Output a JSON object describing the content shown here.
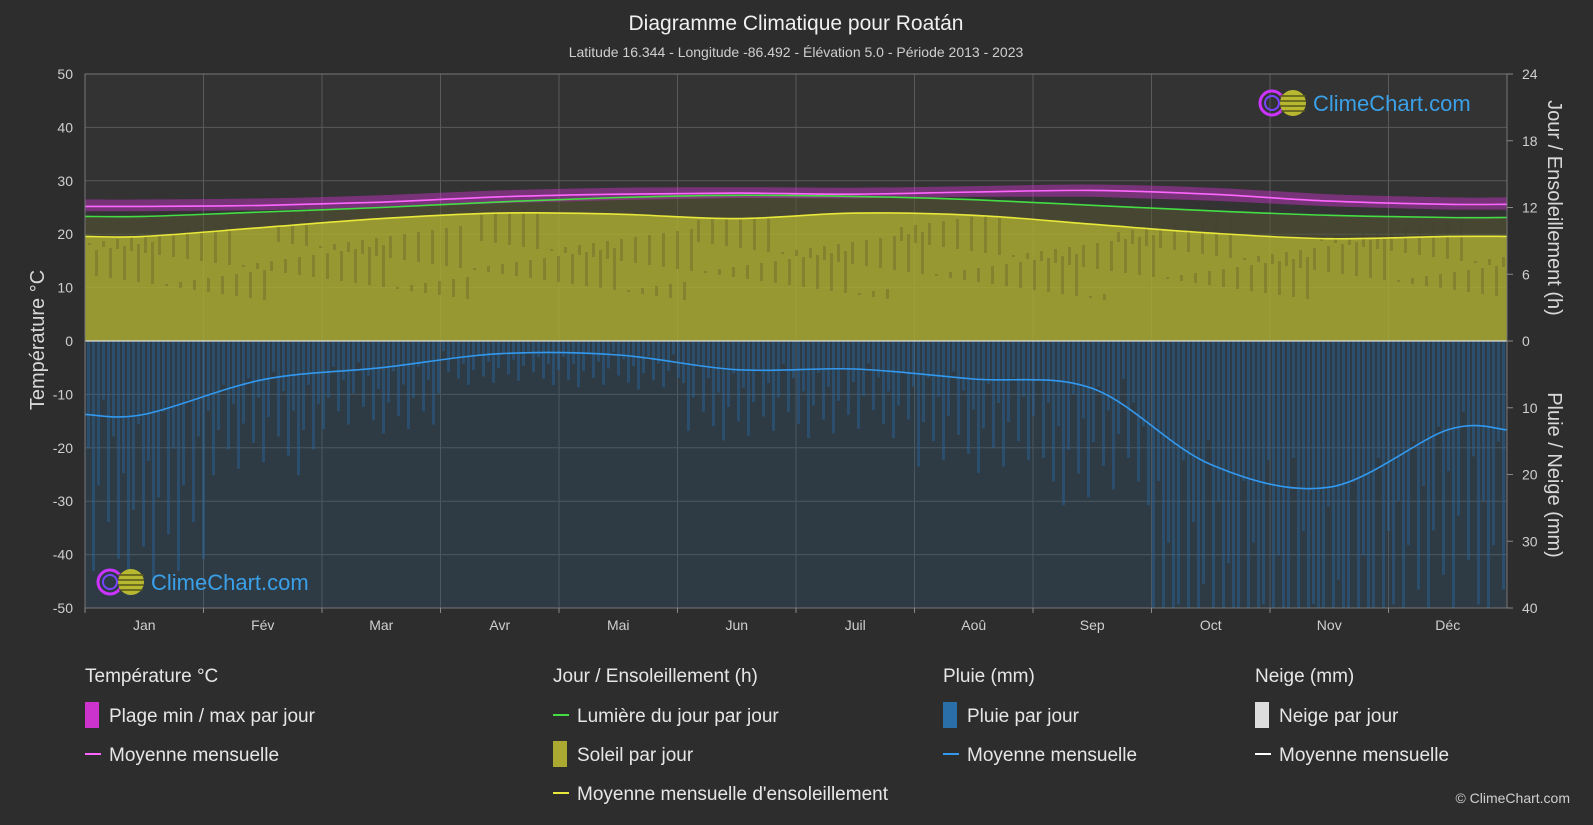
{
  "title": "Diagramme Climatique pour Roatán",
  "subtitle": "Latitude 16.344 - Longitude -86.492 - Élévation 5.0 - Période 2013 - 2023",
  "watermark": "ClimeChart.com",
  "copyright": "© ClimeChart.com",
  "colors": {
    "background": "#2d2d2d",
    "temp_band": "#cc33cc",
    "temp_mean": "#ff66ff",
    "daylight": "#44dd44",
    "sunshine_fill": "#aaaa33",
    "sunshine_mean": "#e8e83a",
    "rain_fill": "#2a6fa8",
    "rain_mean": "#3399ee",
    "snow_mean": "#ffffff",
    "watermark": "#3aa0e8"
  },
  "chart_data": {
    "type": "line",
    "categories": [
      "Jan",
      "Fév",
      "Mar",
      "Avr",
      "Mai",
      "Jun",
      "Juil",
      "Aoû",
      "Sep",
      "Oct",
      "Nov",
      "Déc"
    ],
    "left_axis": {
      "label": "Température °C",
      "ticks": [
        "50",
        "40",
        "30",
        "20",
        "10",
        "0",
        "-10",
        "-20",
        "-30",
        "-40",
        "-50"
      ],
      "range": [
        -50,
        50
      ]
    },
    "right_axis_top": {
      "label": "Jour / Ensoleillement (h)",
      "ticks": [
        "24",
        "18",
        "12",
        "6",
        "0"
      ],
      "range": [
        0,
        24
      ]
    },
    "right_axis_bottom": {
      "label": "Pluie / Neige (mm)",
      "ticks": [
        "0",
        "10",
        "20",
        "30",
        "40"
      ],
      "range": [
        0,
        40
      ]
    },
    "grid": true,
    "series": [
      {
        "name": "Moyenne mensuelle",
        "group": "Température °C",
        "unit": "°C",
        "values": [
          25.2,
          25.4,
          26.0,
          27.0,
          27.5,
          27.7,
          27.5,
          27.9,
          28.2,
          27.5,
          26.2,
          25.6
        ]
      },
      {
        "name": "Plage min / max par jour",
        "group": "Température °C",
        "unit": "°C",
        "min": [
          24.3,
          24.5,
          25.0,
          25.8,
          26.4,
          26.8,
          26.7,
          27.0,
          27.0,
          26.3,
          25.2,
          24.6
        ],
        "max": [
          26.5,
          26.7,
          27.3,
          28.2,
          28.7,
          28.8,
          28.7,
          29.0,
          29.3,
          28.7,
          27.5,
          26.9
        ]
      },
      {
        "name": "Lumière du jour par jour",
        "group": "Jour / Ensoleillement (h)",
        "unit": "h",
        "values": [
          11.2,
          11.6,
          12.0,
          12.5,
          12.9,
          13.1,
          13.0,
          12.7,
          12.2,
          11.7,
          11.3,
          11.1
        ]
      },
      {
        "name": "Moyenne mensuelle d'ensoleillement",
        "group": "Jour / Ensoleillement (h)",
        "unit": "h",
        "values": [
          9.4,
          10.2,
          11.0,
          11.5,
          11.4,
          11.0,
          11.5,
          11.3,
          10.5,
          9.7,
          9.2,
          9.4
        ]
      },
      {
        "name": "Moyenne mensuelle",
        "group": "Pluie (mm)",
        "unit": "mm",
        "values": [
          11.0,
          5.8,
          4.0,
          1.9,
          2.1,
          4.3,
          4.2,
          5.7,
          7.1,
          18.5,
          21.9,
          13.3
        ]
      },
      {
        "name": "Moyenne mensuelle",
        "group": "Neige (mm)",
        "unit": "mm",
        "values": [
          0,
          0,
          0,
          0,
          0,
          0,
          0,
          0,
          0,
          0,
          0,
          0
        ]
      }
    ]
  },
  "legend": {
    "groups": [
      {
        "title": "Température °C",
        "items": [
          "Plage min / max par jour",
          "Moyenne mensuelle"
        ]
      },
      {
        "title": "Jour / Ensoleillement (h)",
        "items": [
          "Lumière du jour par jour",
          "Soleil par jour",
          "Moyenne mensuelle d'ensoleillement"
        ]
      },
      {
        "title": "Pluie (mm)",
        "items": [
          "Pluie par jour",
          "Moyenne mensuelle"
        ]
      },
      {
        "title": "Neige (mm)",
        "items": [
          "Neige par jour",
          "Moyenne mensuelle"
        ]
      }
    ]
  }
}
